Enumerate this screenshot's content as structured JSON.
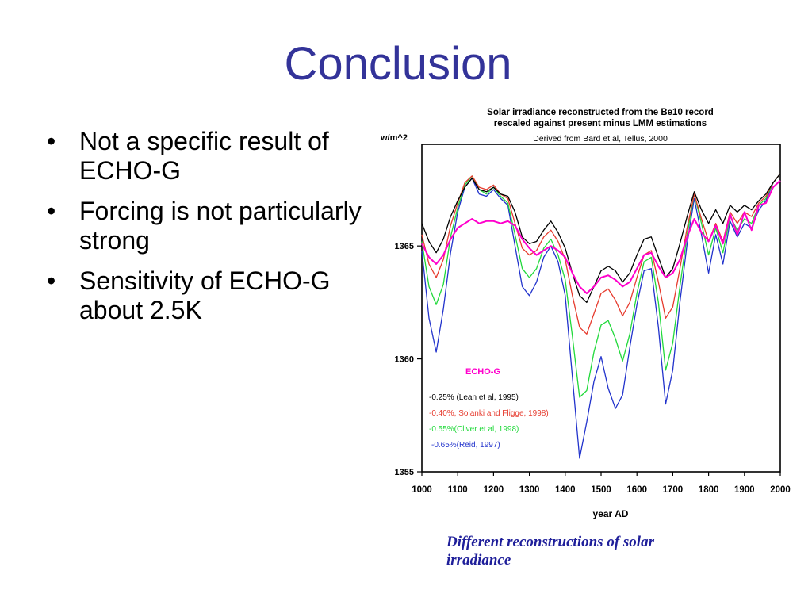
{
  "slide": {
    "title": "Conclusion",
    "bullets": [
      "Not a specific result of ECHO-G",
      "Forcing is not particularly strong",
      "Sensitivity of ECHO-G about 2.5K"
    ],
    "bullet_symbol": "•",
    "caption": "Different reconstructions of solar irradiance",
    "title_color": "#333399",
    "caption_color": "#1f1f9a"
  },
  "chart_data": {
    "type": "line",
    "title": "Solar irradiance reconstructed from the Be10 record",
    "title_line2": "rescaled against present minus  LMM estimations",
    "subtitle": "Derived from Bard et al, Tellus, 2000",
    "ylabel": "w/m^2",
    "xlabel": "year AD",
    "xlim": [
      1000,
      2000
    ],
    "ylim": [
      1355,
      1369.5
    ],
    "x_ticks": [
      1000,
      1100,
      1200,
      1300,
      1400,
      1500,
      1600,
      1700,
      1800,
      1900,
      2000
    ],
    "y_ticks": [
      1355,
      1360,
      1365
    ],
    "grid": false,
    "legend_title": "ECHO-G",
    "legend_position": "bottom-left inside plot",
    "x": [
      1000,
      1020,
      1040,
      1060,
      1080,
      1100,
      1120,
      1140,
      1160,
      1180,
      1200,
      1220,
      1240,
      1260,
      1280,
      1300,
      1320,
      1340,
      1360,
      1380,
      1400,
      1420,
      1440,
      1460,
      1480,
      1500,
      1520,
      1540,
      1560,
      1580,
      1600,
      1620,
      1640,
      1660,
      1680,
      1700,
      1720,
      1740,
      1760,
      1780,
      1800,
      1820,
      1840,
      1860,
      1880,
      1900,
      1920,
      1940,
      1960,
      1980,
      2000
    ],
    "series": [
      {
        "name": "ECHO-G",
        "color": "#ff00cc",
        "values": [
          1365.1,
          1364.5,
          1364.2,
          1364.6,
          1365.3,
          1365.8,
          1366.0,
          1366.2,
          1366.0,
          1366.1,
          1366.1,
          1366.0,
          1366.1,
          1365.9,
          1365.3,
          1364.9,
          1364.6,
          1364.8,
          1365.0,
          1364.8,
          1364.5,
          1363.8,
          1363.2,
          1362.9,
          1363.2,
          1363.6,
          1363.7,
          1363.5,
          1363.2,
          1363.4,
          1364.0,
          1364.6,
          1364.7,
          1364.1,
          1363.6,
          1363.8,
          1364.4,
          1365.4,
          1366.2,
          1365.6,
          1365.2,
          1365.9,
          1365.1,
          1366.4,
          1365.5,
          1366.5,
          1365.7,
          1366.8,
          1366.9,
          1367.6,
          1367.9
        ]
      },
      {
        "name": "-0.25% (Lean et al, 1995)",
        "color": "#000000",
        "values": [
          1366.0,
          1365.2,
          1364.7,
          1365.3,
          1366.3,
          1367.0,
          1367.6,
          1368.0,
          1367.5,
          1367.4,
          1367.6,
          1367.3,
          1367.2,
          1366.5,
          1365.4,
          1365.1,
          1365.2,
          1365.7,
          1366.1,
          1365.6,
          1364.9,
          1363.8,
          1362.8,
          1362.5,
          1363.2,
          1363.9,
          1364.1,
          1363.9,
          1363.4,
          1363.8,
          1364.6,
          1365.3,
          1365.4,
          1364.5,
          1363.6,
          1364.0,
          1365.1,
          1366.3,
          1367.4,
          1366.6,
          1366.0,
          1366.6,
          1366.0,
          1366.8,
          1366.5,
          1366.8,
          1366.6,
          1367.0,
          1367.3,
          1367.8,
          1368.2
        ]
      },
      {
        "name": "-0.40%, Solanki and Fligge, 1998)",
        "color": "#e63b2e",
        "values": [
          1365.5,
          1364.2,
          1363.6,
          1364.4,
          1365.9,
          1366.9,
          1367.8,
          1368.1,
          1367.6,
          1367.5,
          1367.7,
          1367.3,
          1367.1,
          1366.0,
          1364.9,
          1364.6,
          1364.8,
          1365.4,
          1365.7,
          1365.2,
          1364.4,
          1362.8,
          1361.4,
          1361.1,
          1362.0,
          1362.9,
          1363.1,
          1362.6,
          1361.9,
          1362.5,
          1363.6,
          1364.6,
          1364.8,
          1363.4,
          1361.8,
          1362.3,
          1364.0,
          1365.8,
          1367.3,
          1366.2,
          1365.2,
          1366.0,
          1365.2,
          1366.5,
          1366.0,
          1366.5,
          1366.3,
          1366.9,
          1367.2,
          1367.8,
          1368.2
        ]
      },
      {
        "name": "-0.55%(Cliver et al, 1998)",
        "color": "#21d93b",
        "values": [
          1365.2,
          1363.2,
          1362.4,
          1363.3,
          1365.4,
          1366.7,
          1367.7,
          1368.1,
          1367.5,
          1367.3,
          1367.6,
          1367.2,
          1366.9,
          1365.5,
          1364.0,
          1363.6,
          1364.0,
          1364.9,
          1365.3,
          1364.6,
          1363.5,
          1361.0,
          1358.3,
          1358.6,
          1360.3,
          1361.5,
          1361.7,
          1360.9,
          1359.9,
          1361.1,
          1362.9,
          1364.3,
          1364.5,
          1362.5,
          1359.5,
          1360.7,
          1363.2,
          1365.5,
          1367.3,
          1366.0,
          1364.6,
          1365.8,
          1364.7,
          1366.3,
          1365.7,
          1366.2,
          1366.0,
          1366.8,
          1367.1,
          1367.8,
          1368.2
        ]
      },
      {
        "name": "-0.65%(Reid, 1997)",
        "color": "#2233cc",
        "values": [
          1364.8,
          1361.8,
          1360.3,
          1362.2,
          1364.7,
          1366.5,
          1367.6,
          1368.0,
          1367.3,
          1367.2,
          1367.5,
          1367.1,
          1366.8,
          1365.0,
          1363.2,
          1362.8,
          1363.4,
          1364.5,
          1365.0,
          1364.3,
          1362.8,
          1359.2,
          1355.6,
          1357.2,
          1359.0,
          1360.1,
          1358.7,
          1357.8,
          1358.4,
          1360.5,
          1362.4,
          1363.9,
          1364.0,
          1361.4,
          1358.0,
          1359.5,
          1362.5,
          1365.1,
          1367.1,
          1365.5,
          1363.8,
          1365.5,
          1364.2,
          1366.1,
          1365.4,
          1366.0,
          1365.8,
          1366.6,
          1367.0,
          1367.8,
          1368.2
        ]
      }
    ]
  }
}
